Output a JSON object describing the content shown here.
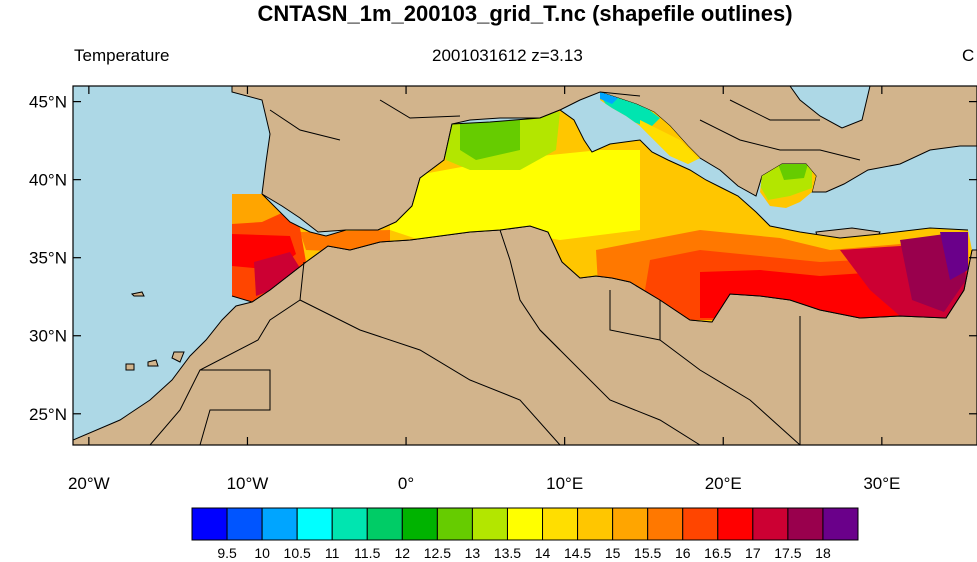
{
  "title": "CNTASN_1m_200103_grid_T.nc (shapefile outlines)",
  "left_string": "Temperature",
  "center_string": "2001031612  z=3.13",
  "right_string": "C",
  "colors": {
    "ocean": "#add8e6",
    "land": "#d2b48c",
    "border": "#000000"
  },
  "map": {
    "lon_range": [
      -21,
      36
    ],
    "lat_range": [
      23,
      46
    ],
    "lat_ticks": [
      {
        "value": 45,
        "label": "45°N"
      },
      {
        "value": 40,
        "label": "40°N"
      },
      {
        "value": 35,
        "label": "35°N"
      },
      {
        "value": 30,
        "label": "30°N"
      },
      {
        "value": 25,
        "label": "25°N"
      }
    ],
    "lon_ticks": [
      {
        "value": -20,
        "label": "20°W"
      },
      {
        "value": -10,
        "label": "10°W"
      },
      {
        "value": 0,
        "label": "0°"
      },
      {
        "value": 10,
        "label": "10°E"
      },
      {
        "value": 20,
        "label": "20°E"
      },
      {
        "value": 30,
        "label": "30°E"
      }
    ]
  },
  "colorbar": {
    "colors": [
      "#0000ff",
      "#0055ff",
      "#00a5ff",
      "#00ffff",
      "#00e5b0",
      "#00cc66",
      "#00b300",
      "#66cc00",
      "#b3e600",
      "#ffff00",
      "#ffde00",
      "#ffc600",
      "#ffa500",
      "#ff7800",
      "#ff4500",
      "#ff0000",
      "#cc0033",
      "#99004d",
      "#6a008a"
    ],
    "labels": [
      "9.5",
      "10",
      "10.5",
      "11",
      "11.5",
      "12",
      "12.5",
      "13",
      "13.5",
      "14",
      "14.5",
      "15",
      "15.5",
      "16",
      "16.5",
      "17",
      "17.5",
      "18"
    ]
  }
}
